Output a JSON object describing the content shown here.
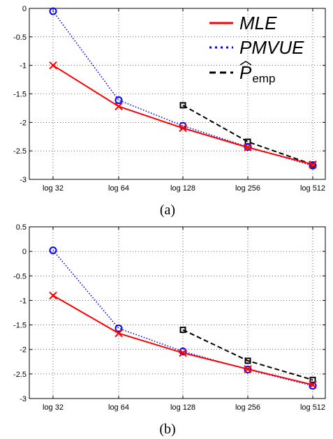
{
  "chart_data": [
    {
      "type": "line",
      "caption": "(a)",
      "categories": [
        "log 32",
        "log 64",
        "log 128",
        "log 256",
        "log 512"
      ],
      "yticks": [
        "-3",
        "-2.5",
        "-2",
        "-1.5",
        "-1",
        "-0.5",
        "0"
      ],
      "ylim": [
        -3,
        0
      ],
      "grid": true,
      "legend": {
        "placement": "top-right"
      },
      "series": [
        {
          "name": "MLE",
          "color": "#ff0000",
          "style": "solid",
          "marker": "x",
          "values": [
            -1.0,
            -1.72,
            -2.1,
            -2.44,
            -2.74
          ]
        },
        {
          "name": "PMVUE",
          "color": "#0000ff",
          "style": "dotted",
          "marker": "o",
          "values": [
            -0.05,
            -1.61,
            -2.06,
            -2.43,
            -2.76
          ]
        },
        {
          "name": "P",
          "name_sub": "emp",
          "color": "#000000",
          "style": "dashed",
          "marker": "s",
          "values": [
            null,
            null,
            -1.7,
            -2.34,
            -2.74
          ]
        }
      ]
    },
    {
      "type": "line",
      "caption": "(b)",
      "categories": [
        "log 32",
        "log 64",
        "log 128",
        "log 256",
        "log 512"
      ],
      "yticks": [
        "-3",
        "-2.5",
        "-2",
        "-1.5",
        "-1",
        "-0.5",
        "0",
        "0.5"
      ],
      "ylim": [
        -3,
        0.5
      ],
      "grid": true,
      "series": [
        {
          "name": "MLE",
          "color": "#ff0000",
          "style": "solid",
          "marker": "x",
          "values": [
            -0.9,
            -1.67,
            -2.07,
            -2.4,
            -2.72
          ]
        },
        {
          "name": "PMVUE",
          "color": "#0000ff",
          "style": "dotted",
          "marker": "o",
          "values": [
            0.02,
            -1.57,
            -2.04,
            -2.41,
            -2.74
          ]
        },
        {
          "name": "P",
          "color": "#000000",
          "style": "dashed",
          "marker": "s",
          "values": [
            null,
            null,
            -1.6,
            -2.23,
            -2.62
          ]
        }
      ]
    }
  ]
}
